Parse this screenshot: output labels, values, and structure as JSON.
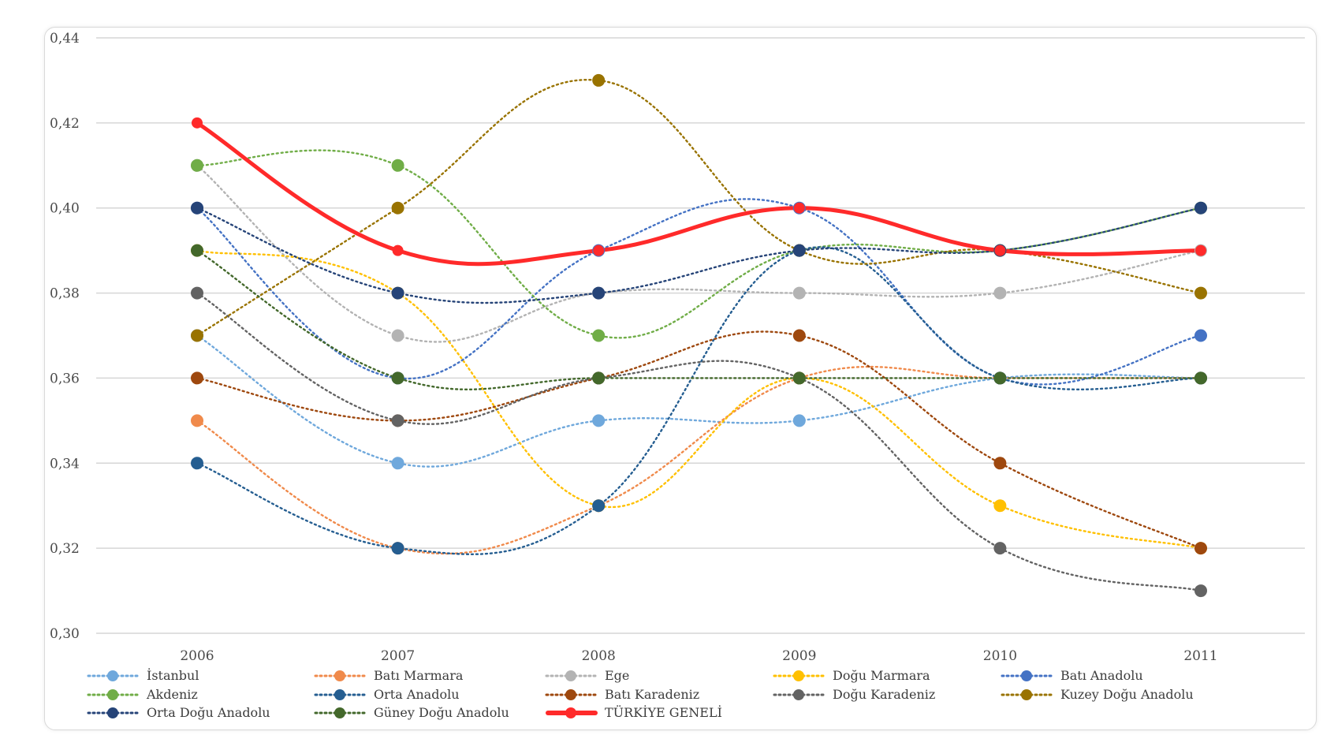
{
  "chart_data": {
    "type": "line",
    "title": "",
    "xlabel": "",
    "ylabel": "",
    "categories": [
      "2006",
      "2007",
      "2008",
      "2009",
      "2010",
      "2011"
    ],
    "y_ticks": [
      "0,30",
      "0,32",
      "0,34",
      "0,36",
      "0,38",
      "0,40",
      "0,42",
      "0,44"
    ],
    "ylim": [
      0.3,
      0.44
    ],
    "grid": true,
    "legend_position": "bottom",
    "series": [
      {
        "name": "İstanbul",
        "color": "#6fa8dc",
        "style": "dotted",
        "values": [
          0.37,
          0.34,
          0.35,
          0.35,
          0.36,
          0.36
        ]
      },
      {
        "name": "Batı Marmara",
        "color": "#f08a4b",
        "style": "dotted",
        "values": [
          0.35,
          0.32,
          0.33,
          0.36,
          0.36,
          0.36
        ]
      },
      {
        "name": "Ege",
        "color": "#b3b3b3",
        "style": "dotted",
        "values": [
          0.41,
          0.37,
          0.38,
          0.38,
          0.38,
          0.39
        ]
      },
      {
        "name": "Doğu Marmara",
        "color": "#ffc000",
        "style": "dotted",
        "values": [
          0.39,
          0.38,
          0.33,
          0.36,
          0.33,
          0.32
        ]
      },
      {
        "name": "Batı Anadolu",
        "color": "#4472c4",
        "style": "dotted",
        "values": [
          0.4,
          0.36,
          0.39,
          0.4,
          0.36,
          0.37
        ]
      },
      {
        "name": "Akdeniz",
        "color": "#70ad47",
        "style": "dotted",
        "values": [
          0.41,
          0.41,
          0.37,
          0.39,
          0.39,
          0.4
        ]
      },
      {
        "name": "Orta Anadolu",
        "color": "#255e91",
        "style": "dotted",
        "values": [
          0.34,
          0.32,
          0.33,
          0.39,
          0.36,
          0.36
        ]
      },
      {
        "name": "Batı Karadeniz",
        "color": "#9e480e",
        "style": "dotted",
        "values": [
          0.36,
          0.35,
          0.36,
          0.37,
          0.34,
          0.32
        ]
      },
      {
        "name": "Doğu Karadeniz",
        "color": "#636363",
        "style": "dotted",
        "values": [
          0.38,
          0.35,
          0.36,
          0.36,
          0.32,
          0.31
        ]
      },
      {
        "name": "Kuzey Doğu Anadolu",
        "color": "#997300",
        "style": "dotted",
        "values": [
          0.37,
          0.4,
          0.43,
          0.39,
          0.39,
          0.38
        ]
      },
      {
        "name": "Orta Doğu Anadolu",
        "color": "#264478",
        "style": "dotted",
        "values": [
          0.4,
          0.38,
          0.38,
          0.39,
          0.39,
          0.4
        ]
      },
      {
        "name": "Güney Doğu Anadolu",
        "color": "#43682b",
        "style": "dotted",
        "values": [
          0.39,
          0.36,
          0.36,
          0.36,
          0.36,
          0.36
        ]
      },
      {
        "name": "TÜRKİYE GENELİ",
        "color": "#ff2a2a",
        "style": "solid-bold",
        "values": [
          0.42,
          0.39,
          0.39,
          0.4,
          0.39,
          0.39
        ]
      }
    ]
  }
}
